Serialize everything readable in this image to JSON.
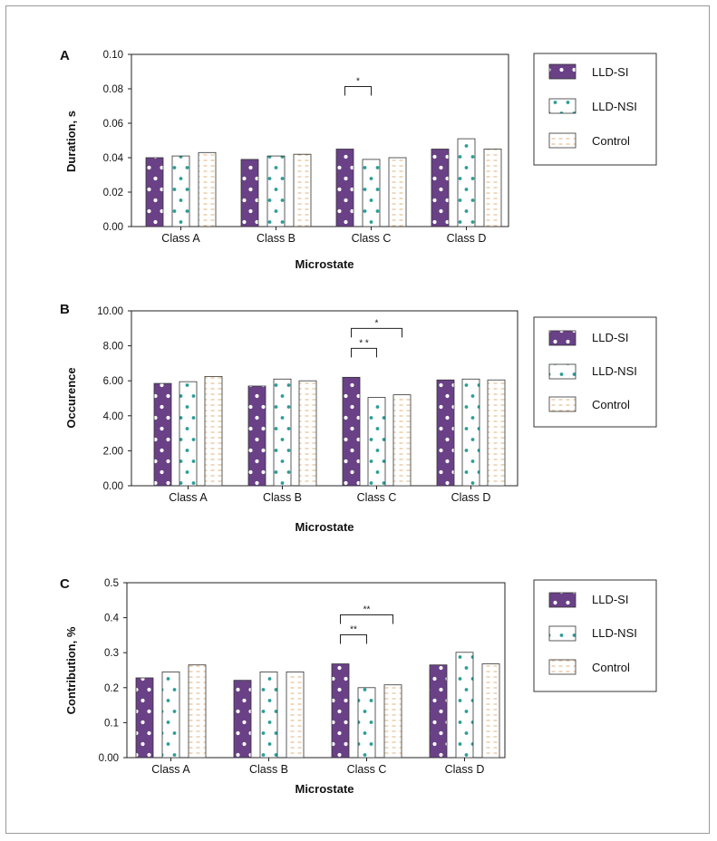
{
  "legend_labels": [
    "LLD-SI",
    "LLD-NSI",
    "Control"
  ],
  "colors": {
    "si": "#6a4187",
    "nsi_dot": "#2a9e96",
    "control_dash": "#e2b27e",
    "axis": "#222222"
  },
  "chart_data": [
    {
      "panel": "A",
      "type": "bar",
      "ylabel": "Duration, s",
      "xlabel": "Microstate",
      "categories": [
        "Class A",
        "Class B",
        "Class C",
        "Class D"
      ],
      "ylim": [
        0,
        0.1
      ],
      "ticks": [
        "0.00",
        "0.02",
        "0.04",
        "0.06",
        "0.08",
        "0.10"
      ],
      "series": [
        {
          "name": "LLD-SI",
          "values": [
            0.04,
            0.039,
            0.045,
            0.045
          ]
        },
        {
          "name": "LLD-NSI",
          "values": [
            0.041,
            0.041,
            0.039,
            0.051
          ]
        },
        {
          "name": "Control",
          "values": [
            0.043,
            0.042,
            0.04,
            0.045
          ]
        }
      ],
      "annotations": [
        {
          "label": "*",
          "category": "Class C",
          "from": "LLD-SI",
          "to": "LLD-NSI"
        }
      ]
    },
    {
      "panel": "B",
      "type": "bar",
      "ylabel": "Occurence",
      "xlabel": "Microstate",
      "categories": [
        "Class A",
        "Class B",
        "Class C",
        "Class D"
      ],
      "ylim": [
        0,
        10
      ],
      "ticks": [
        "0.00",
        "2.00",
        "4.00",
        "6.00",
        "8.00",
        "10.00"
      ],
      "series": [
        {
          "name": "LLD-SI",
          "values": [
            5.85,
            5.7,
            6.2,
            6.05
          ]
        },
        {
          "name": "LLD-NSI",
          "values": [
            5.95,
            6.1,
            5.05,
            6.1
          ]
        },
        {
          "name": "Control",
          "values": [
            6.25,
            6.0,
            5.2,
            6.05
          ]
        }
      ],
      "annotations": [
        {
          "label": "* *",
          "category": "Class C",
          "from": "LLD-SI",
          "to": "LLD-NSI"
        },
        {
          "label": "*",
          "category": "Class C",
          "from": "LLD-SI",
          "to": "Control"
        }
      ]
    },
    {
      "panel": "C",
      "type": "bar",
      "ylabel": "Contribution, %",
      "xlabel": "Microstate",
      "categories": [
        "Class A",
        "Class B",
        "Class C",
        "Class D"
      ],
      "ylim": [
        0,
        0.5
      ],
      "ticks": [
        "0.00",
        "0.1",
        "0.2",
        "0.3",
        "0.4",
        "0.5"
      ],
      "series": [
        {
          "name": "LLD-SI",
          "values": [
            0.228,
            0.221,
            0.268,
            0.265
          ]
        },
        {
          "name": "LLD-NSI",
          "values": [
            0.245,
            0.245,
            0.2,
            0.301
          ]
        },
        {
          "name": "Control",
          "values": [
            0.265,
            0.245,
            0.208,
            0.268
          ]
        }
      ],
      "annotations": [
        {
          "label": "**",
          "category": "Class C",
          "from": "LLD-SI",
          "to": "LLD-NSI"
        },
        {
          "label": "**",
          "category": "Class C",
          "from": "LLD-SI",
          "to": "Control"
        }
      ]
    }
  ]
}
